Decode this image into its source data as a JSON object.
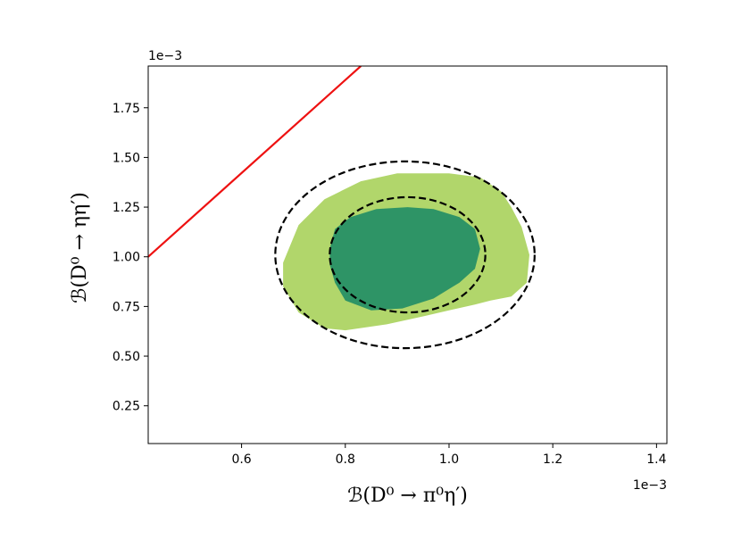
{
  "chart_data": {
    "type": "contour",
    "xlabel": "ℬ(D⁰ → π⁰η′)",
    "ylabel": "ℬ(D⁰ → ηη′)",
    "x_offset_label": "1e−3",
    "y_offset_label": "1e−3",
    "xlim": [
      0.42,
      1.42
    ],
    "ylim": [
      0.06,
      1.96
    ],
    "x_ticks": [
      0.6,
      0.8,
      1.0,
      1.2,
      1.4
    ],
    "x_tick_labels": [
      "0.6",
      "0.8",
      "1.0",
      "1.2",
      "1.4"
    ],
    "y_ticks": [
      0.25,
      0.5,
      0.75,
      1.0,
      1.25,
      1.5,
      1.75
    ],
    "y_tick_labels": [
      "0.25",
      "0.50",
      "0.75",
      "1.00",
      "1.25",
      "1.50",
      "1.75"
    ],
    "grid": false,
    "colors": {
      "inner_region": "#2e9466",
      "outer_region": "#b1d66b",
      "line": "#ee1111",
      "ellipse": "#000000"
    },
    "red_line": {
      "points": [
        [
          0.42,
          1.0
        ],
        [
          0.83,
          1.96
        ]
      ]
    },
    "outer_ellipse": {
      "cx": 0.915,
      "cy": 1.01,
      "rx": 0.25,
      "ry": 0.47
    },
    "inner_ellipse": {
      "cx": 0.92,
      "cy": 1.01,
      "rx": 0.15,
      "ry": 0.29
    },
    "outer_region": {
      "points": [
        [
          0.68,
          0.97
        ],
        [
          0.71,
          1.16
        ],
        [
          0.76,
          1.29
        ],
        [
          0.83,
          1.38
        ],
        [
          0.9,
          1.42
        ],
        [
          1.0,
          1.42
        ],
        [
          1.06,
          1.4
        ],
        [
          1.1,
          1.33
        ],
        [
          1.12,
          1.25
        ],
        [
          1.14,
          1.15
        ],
        [
          1.155,
          1.01
        ],
        [
          1.15,
          0.87
        ],
        [
          1.12,
          0.8
        ],
        [
          1.08,
          0.78
        ],
        [
          1.05,
          0.76
        ],
        [
          1.0,
          0.73
        ],
        [
          0.95,
          0.7
        ],
        [
          0.88,
          0.66
        ],
        [
          0.8,
          0.63
        ],
        [
          0.76,
          0.64
        ],
        [
          0.71,
          0.72
        ],
        [
          0.68,
          0.85
        ]
      ]
    },
    "inner_region": {
      "points": [
        [
          0.77,
          1.04
        ],
        [
          0.78,
          1.14
        ],
        [
          0.81,
          1.2
        ],
        [
          0.86,
          1.24
        ],
        [
          0.92,
          1.25
        ],
        [
          0.97,
          1.24
        ],
        [
          1.02,
          1.2
        ],
        [
          1.05,
          1.14
        ],
        [
          1.06,
          1.04
        ],
        [
          1.05,
          0.94
        ],
        [
          1.02,
          0.87
        ],
        [
          0.97,
          0.79
        ],
        [
          0.91,
          0.74
        ],
        [
          0.85,
          0.73
        ],
        [
          0.8,
          0.78
        ],
        [
          0.78,
          0.87
        ],
        [
          0.77,
          0.96
        ]
      ]
    }
  }
}
